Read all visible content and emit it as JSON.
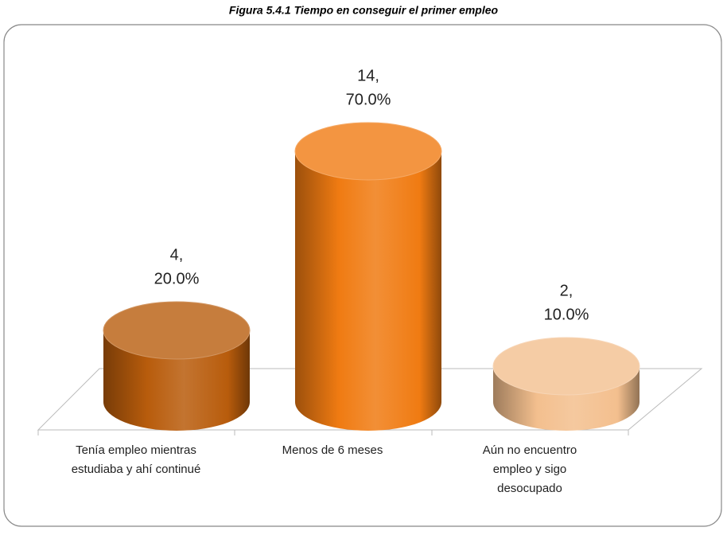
{
  "chart_data": {
    "type": "cylinder_bar",
    "title": "Figura 5.4.1 Tiempo en conseguir el primer empleo",
    "categories": [
      "Tenía empleo mientras estudiaba y ahí continué",
      "Menos de 6 meses",
      "Aún no encuentro empleo y sigo desocupado"
    ],
    "values": [
      4,
      14,
      2
    ],
    "value_labels": [
      "4,",
      "14,",
      "2,"
    ],
    "percent_labels": [
      "20.0%",
      "70.0%",
      "10.0%"
    ],
    "colors": [
      "#b85c0c",
      "#f07b12",
      "#f3bf8e"
    ],
    "ylim": [
      0,
      16
    ]
  }
}
